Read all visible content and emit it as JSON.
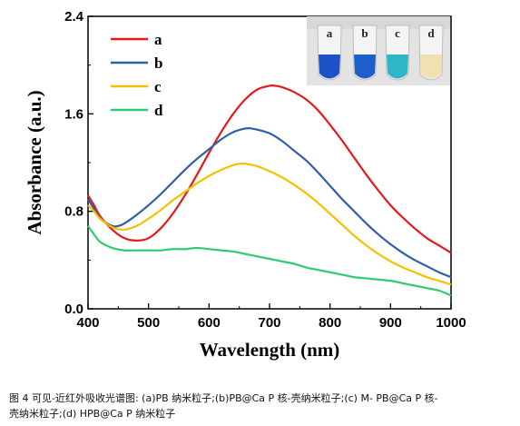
{
  "chart_data": {
    "type": "line",
    "title": "",
    "xlabel": "Wavelength (nm)",
    "ylabel": "Absorbance (a.u.)",
    "xlim": [
      400,
      1000
    ],
    "ylim": [
      0.0,
      2.4
    ],
    "xticks": [
      "400",
      "500",
      "600",
      "700",
      "800",
      "900",
      "1000"
    ],
    "yticks": [
      "0.0",
      "0.8",
      "1.6",
      "2.4"
    ],
    "grid": false,
    "legend_position": "top-left",
    "inset_labels": [
      "a",
      "b",
      "c",
      "d"
    ],
    "series": [
      {
        "name": "a",
        "color": "#e31a1c",
        "x": [
          400,
          410,
          420,
          440,
          460,
          480,
          500,
          520,
          540,
          560,
          580,
          600,
          620,
          640,
          660,
          680,
          700,
          710,
          720,
          740,
          760,
          780,
          800,
          820,
          840,
          860,
          880,
          900,
          920,
          940,
          960,
          980,
          1000
        ],
        "y": [
          0.93,
          0.85,
          0.76,
          0.65,
          0.58,
          0.56,
          0.58,
          0.66,
          0.78,
          0.93,
          1.1,
          1.28,
          1.45,
          1.6,
          1.72,
          1.8,
          1.83,
          1.83,
          1.82,
          1.78,
          1.72,
          1.63,
          1.51,
          1.38,
          1.24,
          1.1,
          0.97,
          0.85,
          0.75,
          0.66,
          0.58,
          0.52,
          0.46
        ]
      },
      {
        "name": "b",
        "color": "#2f5fa7",
        "x": [
          400,
          410,
          420,
          440,
          450,
          460,
          480,
          500,
          520,
          540,
          560,
          580,
          600,
          620,
          640,
          660,
          670,
          680,
          700,
          720,
          740,
          760,
          780,
          800,
          820,
          840,
          860,
          880,
          900,
          920,
          940,
          960,
          980,
          1000
        ],
        "y": [
          0.9,
          0.82,
          0.74,
          0.68,
          0.68,
          0.7,
          0.77,
          0.85,
          0.94,
          1.04,
          1.14,
          1.23,
          1.31,
          1.39,
          1.45,
          1.48,
          1.48,
          1.47,
          1.44,
          1.38,
          1.3,
          1.22,
          1.12,
          1.01,
          0.9,
          0.8,
          0.7,
          0.61,
          0.53,
          0.46,
          0.4,
          0.35,
          0.3,
          0.26
        ]
      },
      {
        "name": "c",
        "color": "#f5c000",
        "x": [
          400,
          410,
          420,
          440,
          460,
          480,
          500,
          520,
          540,
          560,
          580,
          600,
          620,
          640,
          650,
          660,
          680,
          700,
          720,
          740,
          760,
          780,
          800,
          820,
          840,
          860,
          880,
          900,
          920,
          940,
          960,
          980,
          1000
        ],
        "y": [
          0.85,
          0.8,
          0.74,
          0.67,
          0.65,
          0.68,
          0.74,
          0.81,
          0.89,
          0.96,
          1.03,
          1.09,
          1.14,
          1.18,
          1.19,
          1.19,
          1.17,
          1.13,
          1.08,
          1.02,
          0.95,
          0.87,
          0.78,
          0.69,
          0.6,
          0.52,
          0.45,
          0.39,
          0.34,
          0.3,
          0.26,
          0.23,
          0.2
        ]
      },
      {
        "name": "d",
        "color": "#2ecc71",
        "x": [
          400,
          410,
          420,
          440,
          460,
          480,
          500,
          520,
          540,
          560,
          580,
          600,
          620,
          640,
          660,
          680,
          700,
          720,
          740,
          760,
          780,
          800,
          820,
          840,
          860,
          880,
          900,
          920,
          940,
          960,
          980,
          1000
        ],
        "y": [
          0.68,
          0.61,
          0.55,
          0.5,
          0.48,
          0.48,
          0.48,
          0.48,
          0.49,
          0.49,
          0.5,
          0.49,
          0.48,
          0.47,
          0.45,
          0.43,
          0.41,
          0.39,
          0.37,
          0.34,
          0.32,
          0.3,
          0.28,
          0.26,
          0.25,
          0.24,
          0.23,
          0.21,
          0.19,
          0.17,
          0.15,
          0.11
        ]
      }
    ]
  },
  "inset": {
    "vial_colors": [
      "#1e50c8",
      "#1e5ec8",
      "#2fb5c8",
      "#efe2b0"
    ]
  },
  "caption": {
    "line1": "图 4  可见-近红外吸收光谱图: (a)PB 纳米粒子;(b)PB@Ca P 核-壳纳米粒子;(c) M- PB@Ca P 核-",
    "line2": "壳纳米粒子;(d) HPB@Ca P 纳米粒子"
  }
}
